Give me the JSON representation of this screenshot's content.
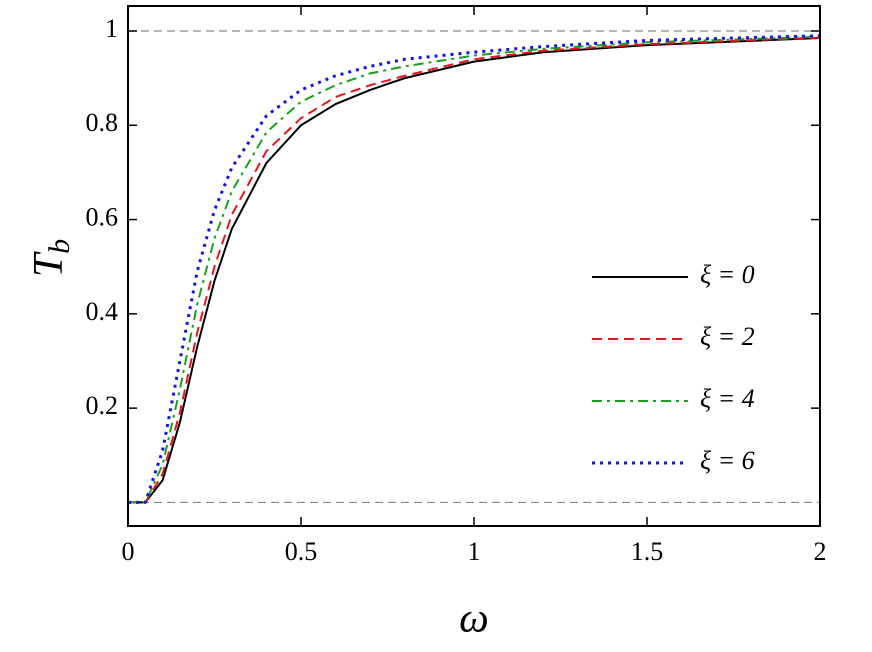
{
  "chart_data": {
    "type": "line",
    "x_label": "ω",
    "y_label": "T",
    "y_label_subscript": "b",
    "xlim": [
      0,
      2
    ],
    "ylim": [
      -0.05,
      1.053
    ],
    "xticks": [
      0,
      0.5,
      1,
      1.5,
      2
    ],
    "yticks": [
      0.2,
      0.4,
      0.6,
      0.8,
      1
    ],
    "reference_lines": [
      0,
      1
    ],
    "legend": "right",
    "x": [
      0,
      0.05,
      0.1,
      0.15,
      0.2,
      0.25,
      0.3,
      0.4,
      0.5,
      0.6,
      0.7,
      0.8,
      1,
      1.2,
      1.5,
      2
    ],
    "series": [
      {
        "name": "ξ = 0",
        "color": "#000000",
        "dash": "solid",
        "values": [
          0,
          0,
          0.047,
          0.17,
          0.33,
          0.47,
          0.58,
          0.72,
          0.8,
          0.845,
          0.875,
          0.9,
          0.935,
          0.955,
          0.97,
          0.985
        ]
      },
      {
        "name": "ξ = 2",
        "color": "#e8141c",
        "dash": "dashed",
        "values": [
          0,
          0,
          0.06,
          0.19,
          0.36,
          0.5,
          0.61,
          0.745,
          0.815,
          0.86,
          0.885,
          0.905,
          0.94,
          0.958,
          0.972,
          0.986
        ]
      },
      {
        "name": "ξ = 4",
        "color": "#1aa01a",
        "dash": "dashdot",
        "values": [
          0,
          0,
          0.08,
          0.24,
          0.42,
          0.56,
          0.66,
          0.785,
          0.85,
          0.885,
          0.91,
          0.925,
          0.948,
          0.962,
          0.976,
          0.988
        ]
      },
      {
        "name": "ξ = 6",
        "color": "#1414e6",
        "dash": "dotted",
        "values": [
          0,
          0,
          0.11,
          0.3,
          0.49,
          0.62,
          0.71,
          0.82,
          0.875,
          0.905,
          0.925,
          0.94,
          0.955,
          0.967,
          0.98,
          0.99
        ]
      }
    ]
  }
}
